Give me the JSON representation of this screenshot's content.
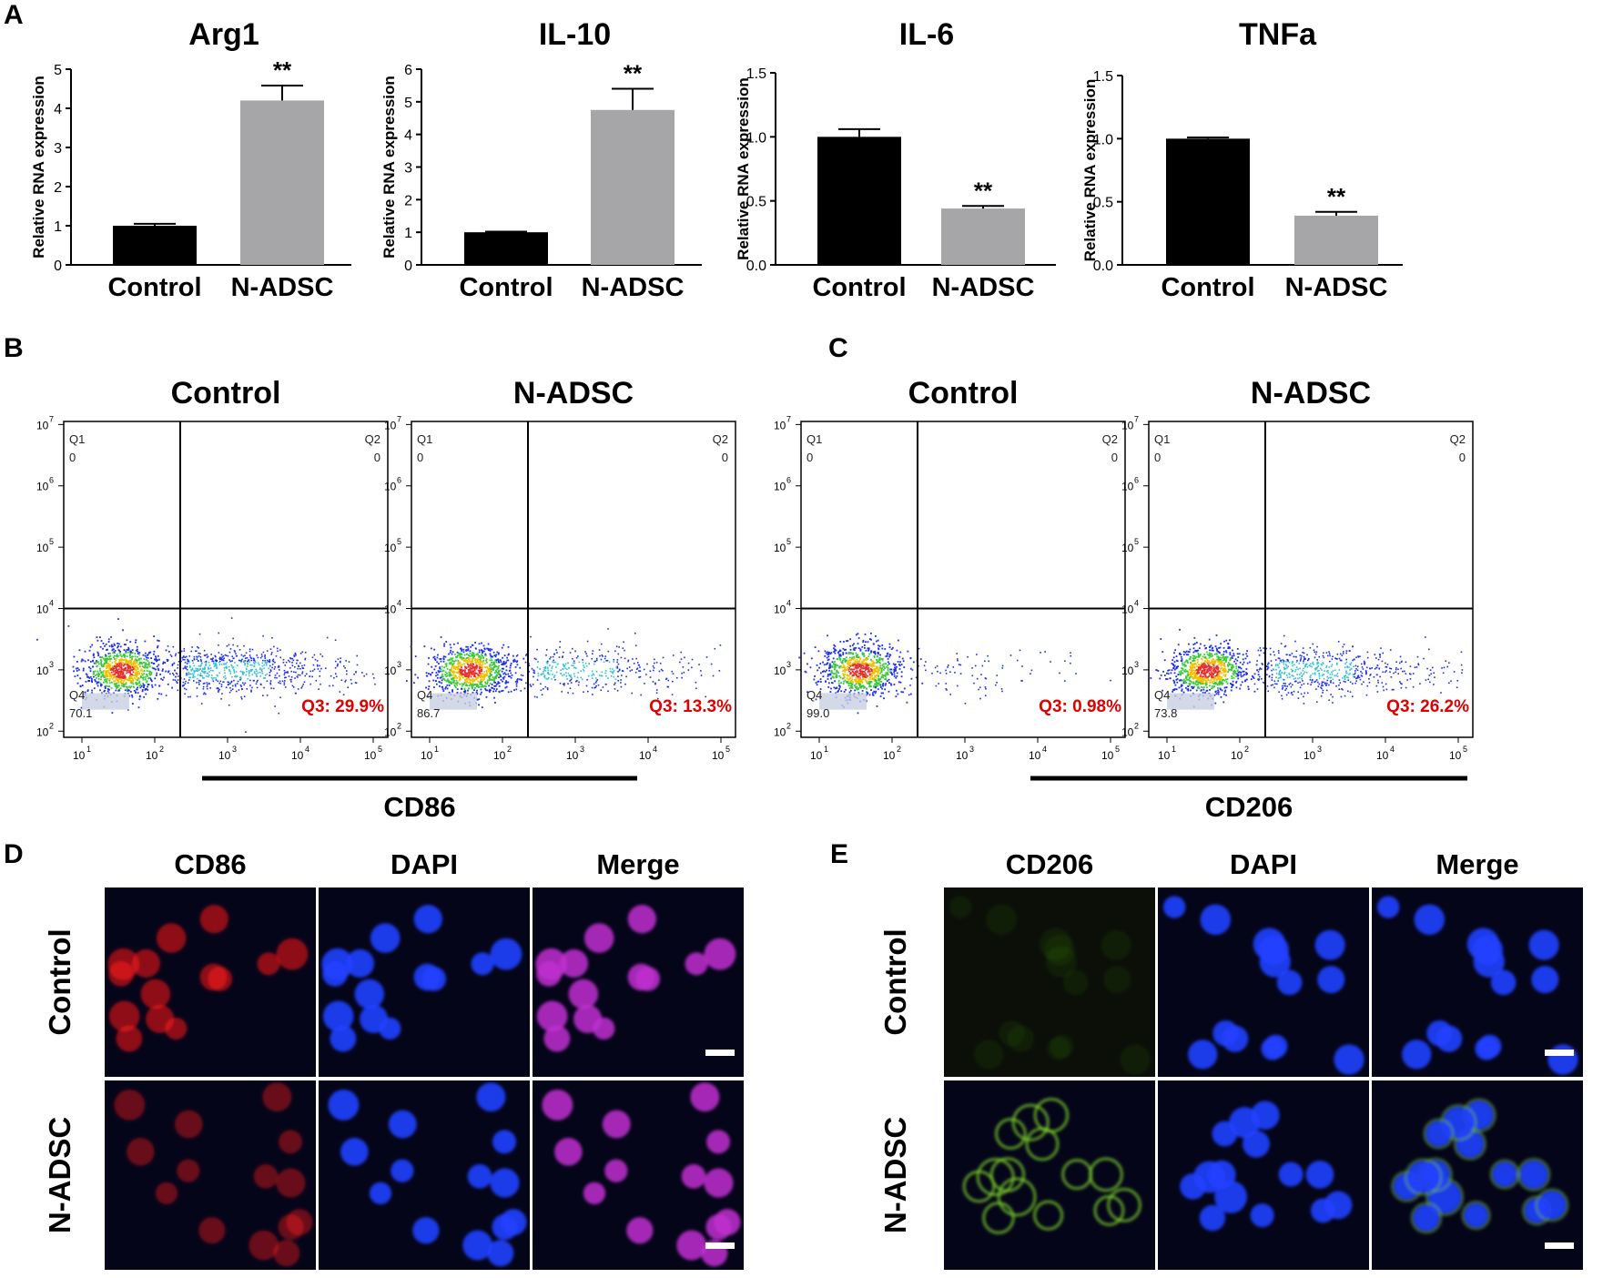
{
  "panels": {
    "A": "A",
    "B": "B",
    "C": "C",
    "D": "D",
    "E": "E"
  },
  "chart_data": [
    {
      "type": "bar",
      "title": "Arg1",
      "ylabel": "Relative RNA expression",
      "categories": [
        "Control",
        "N-ADSC"
      ],
      "values": [
        1.0,
        4.2
      ],
      "errors": [
        0.05,
        0.38
      ],
      "ylim": [
        0,
        5
      ],
      "yticks": [
        "0",
        "1",
        "2",
        "3",
        "4",
        "5"
      ],
      "annotations": [
        "",
        "**"
      ],
      "colors": [
        "#000000",
        "#a6a6a8"
      ]
    },
    {
      "type": "bar",
      "title": "IL-10",
      "ylabel": "Relative RNA expression",
      "categories": [
        "Control",
        "N-ADSC"
      ],
      "values": [
        1.0,
        4.75
      ],
      "errors": [
        0.02,
        0.65
      ],
      "ylim": [
        0,
        6
      ],
      "yticks": [
        "0",
        "1",
        "2",
        "3",
        "4",
        "5",
        "6"
      ],
      "annotations": [
        "",
        "**"
      ],
      "colors": [
        "#000000",
        "#a6a6a8"
      ]
    },
    {
      "type": "bar",
      "title": "IL-6",
      "ylabel": "Relative RNA expression",
      "categories": [
        "Control",
        "N-ADSC"
      ],
      "values": [
        1.0,
        0.44
      ],
      "errors": [
        0.06,
        0.02
      ],
      "ylim": [
        0,
        1.5
      ],
      "yticks": [
        "0.0",
        "0.5",
        "1.0",
        "1.5"
      ],
      "annotations": [
        "",
        "**"
      ],
      "colors": [
        "#000000",
        "#a6a6a8"
      ]
    },
    {
      "type": "bar",
      "title": "TNFa",
      "ylabel": "Relative RNA expression",
      "categories": [
        "Control",
        "N-ADSC"
      ],
      "values": [
        1.0,
        0.39
      ],
      "errors": [
        0.01,
        0.03
      ],
      "ylim": [
        0,
        1.5
      ],
      "yticks": [
        "0.0",
        "0.5",
        "1.0",
        "1.5"
      ],
      "annotations": [
        "",
        "**"
      ],
      "colors": [
        "#000000",
        "#a6a6a8"
      ]
    }
  ],
  "flow": {
    "xticks": [
      "10",
      "10",
      "10",
      "10",
      "10"
    ],
    "xexp": [
      "1",
      "2",
      "3",
      "4",
      "5"
    ],
    "yticks": [
      "10",
      "10",
      "10",
      "10",
      "10",
      "10"
    ],
    "yexp": [
      "2",
      "3",
      "4",
      "5",
      "6",
      "7"
    ],
    "groups": [
      {
        "marker": "CD86",
        "plots": [
          {
            "title": "Control",
            "q1": "Q1",
            "q1_value": "0",
            "q2": "Q2",
            "q2_value": "0",
            "q4": "Q4",
            "q4_value": "70.1",
            "q3_label": "Q3: 29.9%",
            "q3_percent": 29.9
          },
          {
            "title": "N-ADSC",
            "q1": "Q1",
            "q1_value": "0",
            "q2": "Q2",
            "q2_value": "0",
            "q4": "Q4",
            "q4_value": "86.7",
            "q3_label": "Q3: 13.3%",
            "q3_percent": 13.3
          }
        ]
      },
      {
        "marker": "CD206",
        "plots": [
          {
            "title": "Control",
            "q1": "Q1",
            "q1_value": "0",
            "q2": "Q2",
            "q2_value": "0",
            "q4": "Q4",
            "q4_value": "99.0",
            "q3_label": "Q3: 0.98%",
            "q3_percent": 0.98
          },
          {
            "title": "N-ADSC",
            "q1": "Q1",
            "q1_value": "0",
            "q2": "Q2",
            "q2_value": "0",
            "q4": "Q4",
            "q4_value": "73.8",
            "q3_label": "Q3: 26.2%",
            "q3_percent": 26.2
          }
        ]
      }
    ]
  },
  "microscopy": {
    "D": {
      "columns": [
        "CD86",
        "DAPI",
        "Merge"
      ],
      "rows": [
        "Control",
        "N-ADSC"
      ]
    },
    "E": {
      "columns": [
        "CD206",
        "DAPI",
        "Merge"
      ],
      "rows": [
        "Control",
        "N-ADSC"
      ]
    }
  }
}
